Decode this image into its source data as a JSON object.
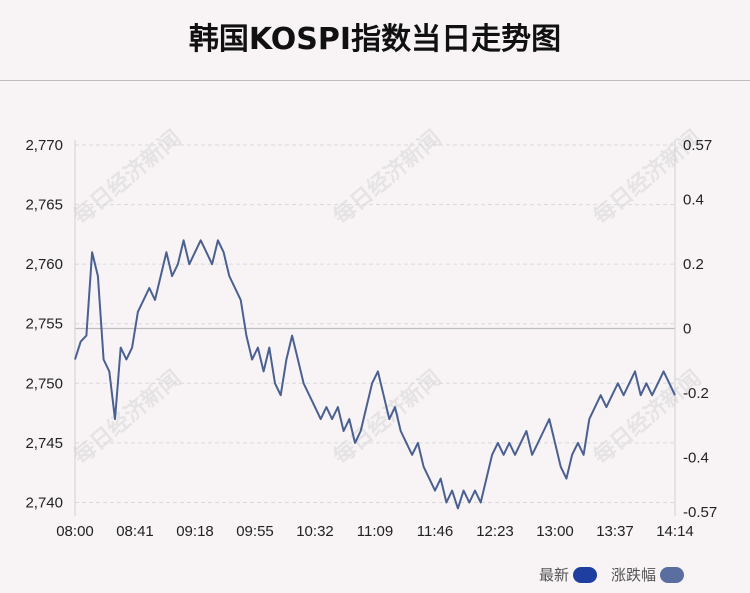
{
  "title": "韩国KOSPI指数当日走势图",
  "watermark_text": "每日经济新闻",
  "legend": [
    {
      "label": "最新",
      "color": "#1f3fa0"
    },
    {
      "label": "涨跌幅",
      "color": "#5a6fa0"
    }
  ],
  "colors": {
    "line": "#4a6090",
    "grid": "#d9d9d9",
    "zero_line": "#bdbdbd",
    "axis_text": "#222222"
  },
  "chart_data": {
    "type": "line",
    "x_ticks": [
      "08:00",
      "08:41",
      "09:18",
      "09:55",
      "10:32",
      "11:09",
      "11:46",
      "12:23",
      "13:00",
      "13:37",
      "14:14"
    ],
    "y_left_ticks": [
      "2,740",
      "2,745",
      "2,750",
      "2,755",
      "2,760",
      "2,765",
      "2,770"
    ],
    "y_left_range": [
      2739.2,
      2770
    ],
    "y_right_ticks": [
      "0.57",
      "0.4",
      "0.2",
      "0",
      "-0.2",
      "-0.4",
      "-0.57"
    ],
    "y_right_range": [
      -0.57,
      0.57
    ],
    "previous_close": 2754.6,
    "grid": true,
    "series": [
      {
        "values": [
          2752,
          2753.5,
          2754,
          2761,
          2759,
          2752,
          2751,
          2747,
          2753,
          2752,
          2753,
          2756,
          2757,
          2758,
          2757,
          2759,
          2761,
          2759,
          2760,
          2762,
          2760,
          2761,
          2762,
          2761,
          2760,
          2762,
          2761,
          2759,
          2758,
          2757,
          2754,
          2752,
          2753,
          2751,
          2753,
          2750,
          2749,
          2752,
          2754,
          2752,
          2750,
          2749,
          2748,
          2747,
          2748,
          2747,
          2748,
          2746,
          2747,
          2745,
          2746,
          2748,
          2750,
          2751,
          2749,
          2747,
          2748,
          2746,
          2745,
          2744,
          2745,
          2743,
          2742,
          2741,
          2742,
          2740,
          2741,
          2739.5,
          2741,
          2740,
          2741,
          2740,
          2742,
          2744,
          2745,
          2744,
          2745,
          2744,
          2745,
          2746,
          2744,
          2745,
          2746,
          2747,
          2745,
          2743,
          2742,
          2744,
          2745,
          2744,
          2747,
          2748,
          2749,
          2748,
          2749,
          2750,
          2749,
          2750,
          2751,
          2749,
          2750,
          2749,
          2750,
          2751,
          2750,
          2749
        ]
      }
    ]
  }
}
